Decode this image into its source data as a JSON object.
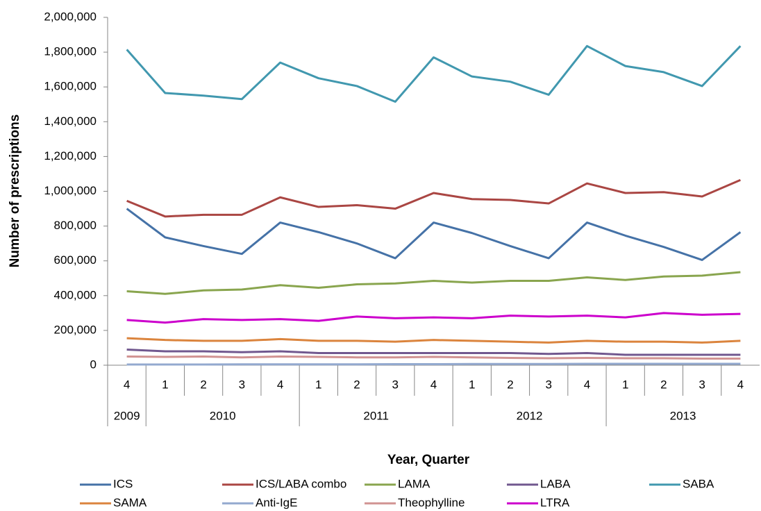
{
  "chart_data": {
    "type": "line",
    "y_label": "Number of prescriptions",
    "x_label": "Year, Quarter",
    "categories": [
      "4",
      "1",
      "2",
      "3",
      "4",
      "1",
      "2",
      "3",
      "4",
      "1",
      "2",
      "3",
      "4",
      "1",
      "2",
      "3",
      "4"
    ],
    "years": [
      "2009",
      "2010",
      "2010",
      "2010",
      "2010",
      "2011",
      "2011",
      "2011",
      "2011",
      "2012",
      "2012",
      "2012",
      "2012",
      "2013",
      "2013",
      "2013",
      "2013"
    ],
    "ylim": [
      0,
      2000000
    ],
    "yticks": [
      0,
      {
        "value": 200000,
        "label": "200,000"
      },
      {
        "value": 400000,
        "label": "400,000"
      },
      {
        "value": 600000,
        "label": "600,000"
      },
      {
        "value": 800000,
        "label": "800,000"
      },
      {
        "value": 1000000,
        "label": "1,000,000"
      },
      {
        "value": 1200000,
        "label": "1,200,000"
      },
      {
        "value": 1400000,
        "label": "1,400,000"
      },
      {
        "value": 1600000,
        "label": "1,600,000"
      },
      {
        "value": 1800000,
        "label": "1,800,000"
      },
      {
        "value": 2000000,
        "label": "2,000,000"
      }
    ],
    "grid": false,
    "legend": "bottom",
    "series": [
      {
        "name": "ICS",
        "color": "#4572a7",
        "values": [
          900000,
          735000,
          685000,
          640000,
          820000,
          765000,
          700000,
          615000,
          820000,
          760000,
          685000,
          615000,
          820000,
          745000,
          680000,
          605000,
          765000
        ]
      },
      {
        "name": "ICS/LABA combo",
        "color": "#aa4643",
        "values": [
          945000,
          855000,
          865000,
          865000,
          965000,
          910000,
          920000,
          900000,
          990000,
          955000,
          950000,
          930000,
          1045000,
          990000,
          995000,
          970000,
          1065000
        ]
      },
      {
        "name": "LAMA",
        "color": "#89a54e",
        "values": [
          425000,
          410000,
          430000,
          435000,
          460000,
          445000,
          465000,
          470000,
          485000,
          475000,
          485000,
          485000,
          505000,
          490000,
          510000,
          515000,
          535000
        ]
      },
      {
        "name": "LABA",
        "color": "#71588f",
        "values": [
          90000,
          80000,
          80000,
          75000,
          80000,
          70000,
          70000,
          70000,
          70000,
          70000,
          70000,
          65000,
          70000,
          60000,
          60000,
          60000,
          60000
        ]
      },
      {
        "name": "SABA",
        "color": "#4198af",
        "values": [
          1815000,
          1565000,
          1550000,
          1530000,
          1740000,
          1650000,
          1605000,
          1515000,
          1770000,
          1660000,
          1630000,
          1555000,
          1835000,
          1720000,
          1685000,
          1605000,
          1835000
        ]
      },
      {
        "name": "SAMA",
        "color": "#db843d",
        "values": [
          155000,
          145000,
          140000,
          140000,
          150000,
          140000,
          140000,
          135000,
          145000,
          140000,
          135000,
          130000,
          140000,
          135000,
          135000,
          130000,
          140000
        ]
      },
      {
        "name": "Anti-IgE",
        "color": "#93a9cf",
        "values": [
          4000,
          4000,
          4000,
          5000,
          5000,
          5000,
          5000,
          6000,
          6000,
          7000,
          7000,
          7000,
          8000,
          8000,
          8000,
          8000,
          8000
        ]
      },
      {
        "name": "Theophylline",
        "color": "#d19392",
        "values": [
          50000,
          48000,
          50000,
          45000,
          50000,
          48000,
          45000,
          45000,
          48000,
          45000,
          42000,
          40000,
          42000,
          40000,
          40000,
          38000,
          38000
        ]
      },
      {
        "name": "LTRA",
        "color": "#cc00cc",
        "values": [
          260000,
          245000,
          265000,
          260000,
          265000,
          255000,
          280000,
          270000,
          275000,
          270000,
          285000,
          280000,
          285000,
          275000,
          300000,
          290000,
          295000
        ]
      }
    ]
  }
}
